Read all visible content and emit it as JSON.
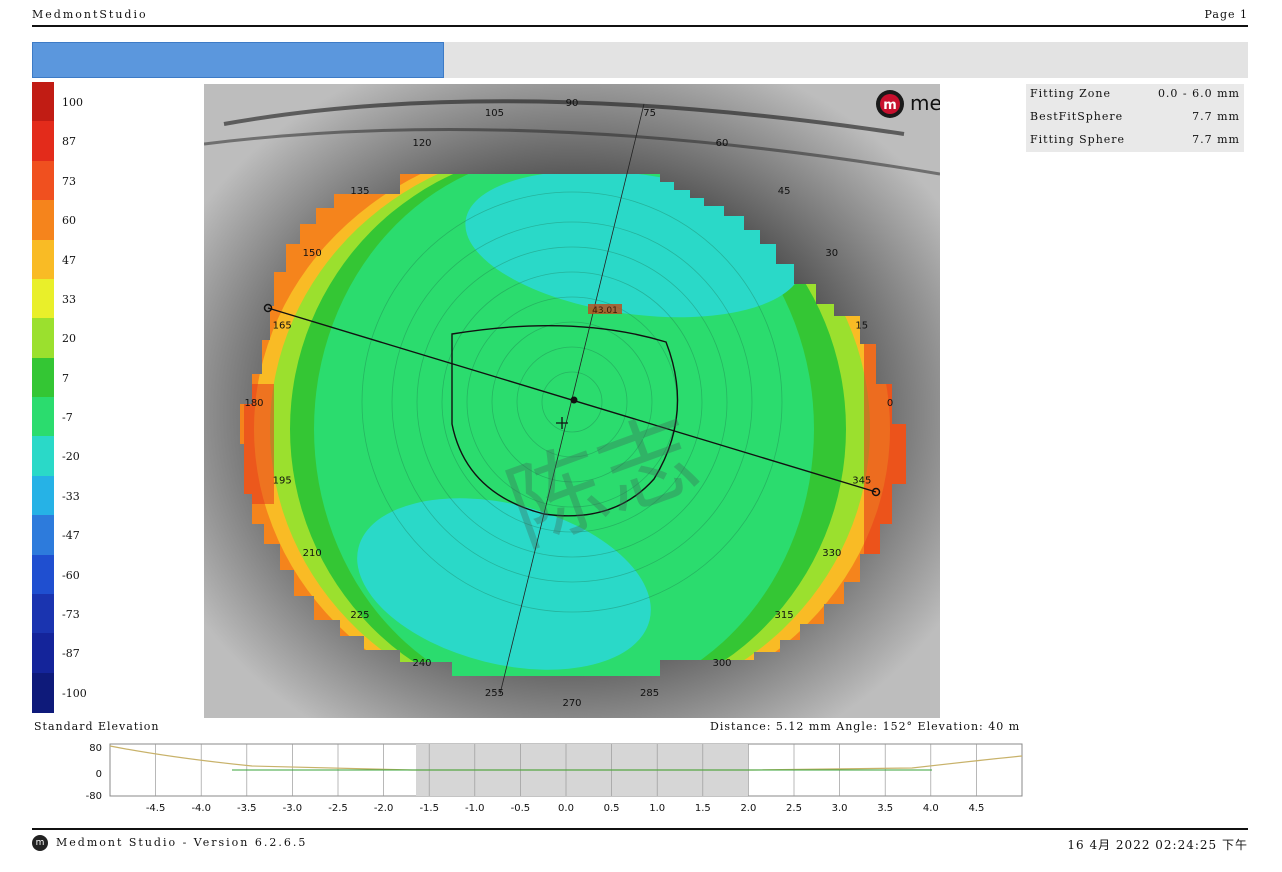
{
  "header": {
    "app": "MedmontStudio",
    "page": "Page 1"
  },
  "legend": {
    "values": [
      "100",
      "87",
      "73",
      "60",
      "47",
      "33",
      "20",
      "7",
      "-7",
      "-20",
      "-33",
      "-47",
      "-60",
      "-73",
      "-87",
      "-100"
    ],
    "colors": [
      "#c11c14",
      "#e32b1b",
      "#f0501f",
      "#f5841c",
      "#f9bb25",
      "#e9ef2a",
      "#9be02e",
      "#34c634",
      "#2bdc6e",
      "#2ad9c8",
      "#26b2e6",
      "#2d7bdc",
      "#1f4fd0",
      "#1a34b0",
      "#14249a",
      "#0e1a7a"
    ]
  },
  "map": {
    "brand": "medmont",
    "axis_labels": [
      "105",
      "90",
      "75",
      "120",
      "60",
      "135",
      "45",
      "150",
      "30",
      "165",
      "15",
      "180",
      "0",
      "195",
      "345",
      "210",
      "330",
      "225",
      "315",
      "240",
      "300",
      "255",
      "270",
      "285"
    ],
    "center_value": "43.01",
    "watermark": "陈志"
  },
  "info": {
    "rows": [
      {
        "label": "Fitting Zone",
        "value": "0.0 - 6.0 mm"
      },
      {
        "label": "BestFitSphere",
        "value": "7.7 mm"
      },
      {
        "label": "Fitting Sphere",
        "value": "7.7 mm"
      }
    ]
  },
  "profile": {
    "title": "Standard Elevation",
    "measure": "Distance: 5.12 mm  Angle: 152°  Elevation: 40 m",
    "y_ticks": [
      "80",
      "0",
      "-80"
    ],
    "x_ticks": [
      "-4.5",
      "-4.0",
      "-3.5",
      "-3.0",
      "-2.5",
      "-2.0",
      "-1.5",
      "-1.0",
      "-0.5",
      "0.0",
      "0.5",
      "1.0",
      "1.5",
      "2.0",
      "2.5",
      "3.0",
      "3.5",
      "4.0",
      "4.5"
    ]
  },
  "footer": {
    "icon": "m",
    "version": "Medmont Studio - Version 6.2.6.5",
    "datetime": "16 4月 2022  02:24:25 下午"
  }
}
